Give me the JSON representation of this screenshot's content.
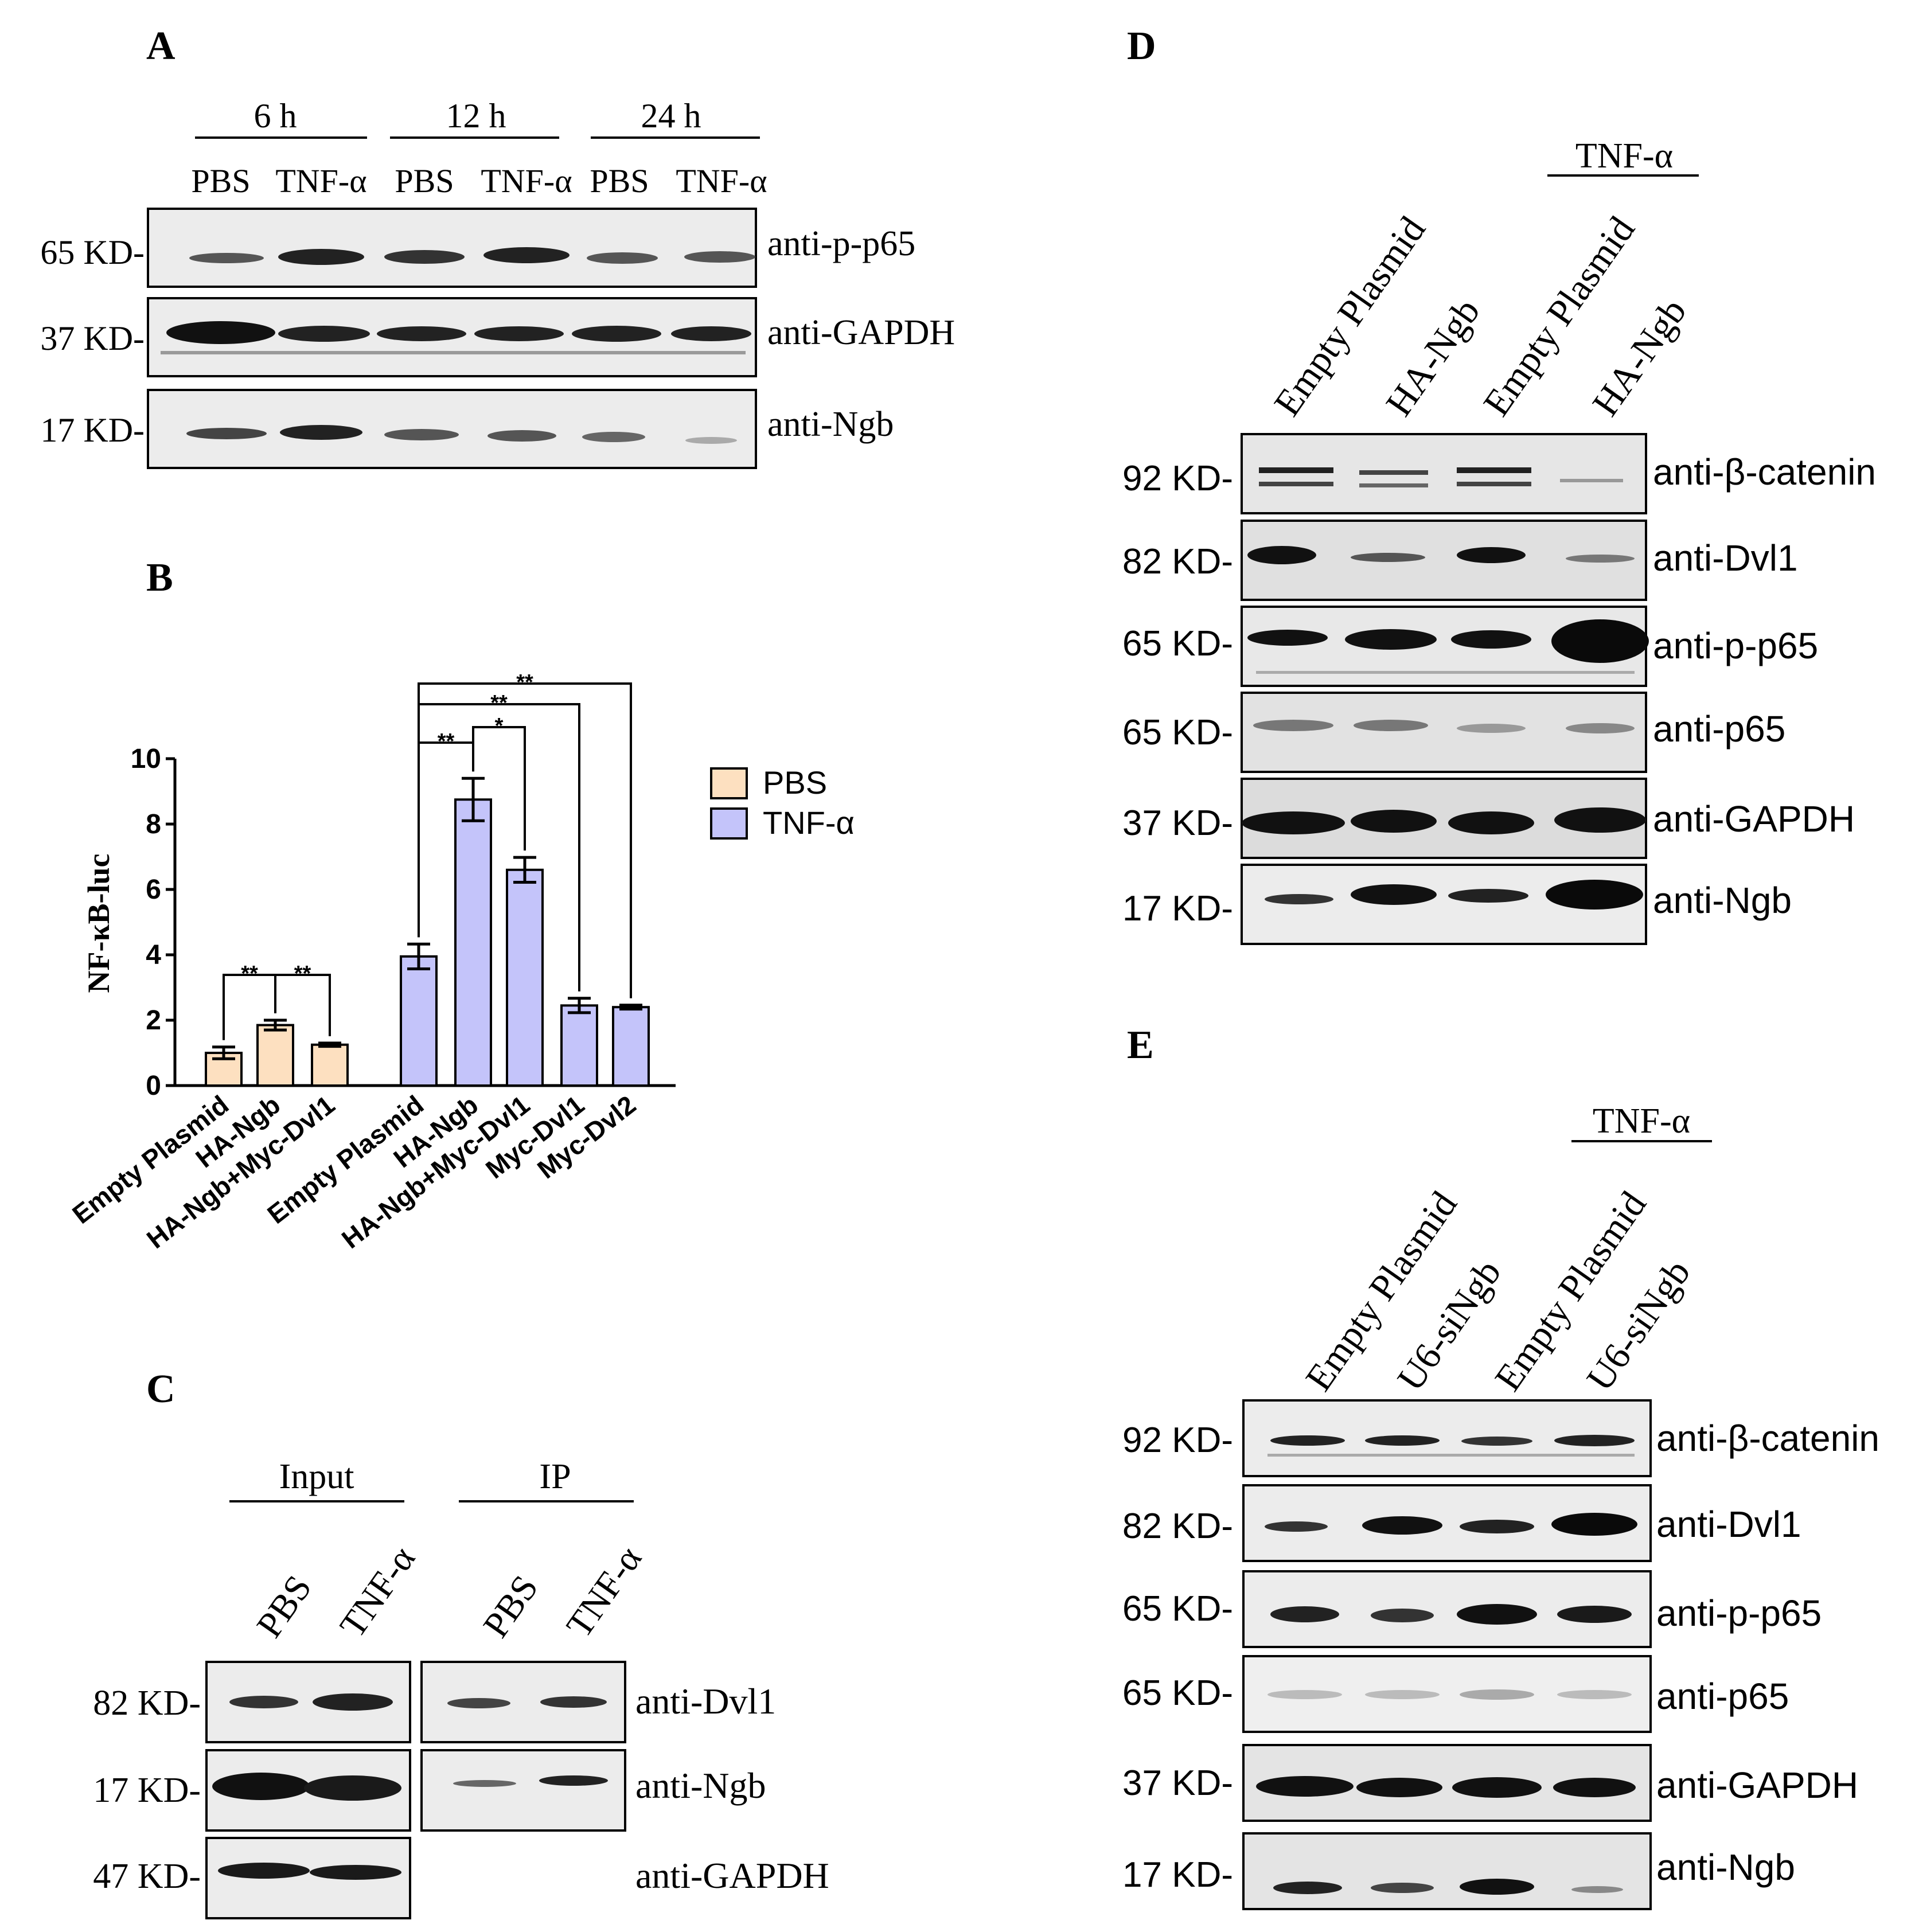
{
  "panels": {
    "A": {
      "letter": "A",
      "groups": [
        "6 h",
        "12 h",
        "24 h"
      ],
      "lanes": [
        "PBS",
        "TNF-α",
        "PBS",
        "TNF-α",
        "PBS",
        "TNF-α"
      ],
      "blots": [
        {
          "kd": "65 KD-",
          "antibody": "anti-p-p65"
        },
        {
          "kd": "37 KD-",
          "antibody": "anti-GAPDH"
        },
        {
          "kd": "17 KD-",
          "antibody": "anti-Ngb"
        }
      ]
    },
    "B": {
      "letter": "B"
    },
    "C": {
      "letter": "C",
      "groups": [
        "Input",
        "IP"
      ],
      "lanes": [
        "PBS",
        "TNF-α",
        "PBS",
        "TNF-α"
      ],
      "blots": [
        {
          "kd": "82 KD-",
          "antibody": "anti-Dvl1"
        },
        {
          "kd": "17 KD-",
          "antibody": "anti-Ngb"
        },
        {
          "kd": "47 KD-",
          "antibody": "anti-GAPDH"
        }
      ]
    },
    "D": {
      "letter": "D",
      "treatment": "TNF-α",
      "lanes": [
        "Empty Plasmid",
        "HA-Ngb",
        "Empty Plasmid",
        "HA-Ngb"
      ],
      "blots": [
        {
          "kd": "92 KD-",
          "antibody": "anti-β-catenin"
        },
        {
          "kd": "82 KD-",
          "antibody": "anti-Dvl1"
        },
        {
          "kd": "65 KD-",
          "antibody": "anti-p-p65"
        },
        {
          "kd": "65 KD-",
          "antibody": "anti-p65"
        },
        {
          "kd": "37 KD-",
          "antibody": "anti-GAPDH"
        },
        {
          "kd": "17 KD-",
          "antibody": "anti-Ngb"
        }
      ]
    },
    "E": {
      "letter": "E",
      "treatment": "TNF-α",
      "lanes": [
        "Empty Plasmid",
        "U6-siNgb",
        "Empty Plasmid",
        "U6-siNgb"
      ],
      "blots": [
        {
          "kd": "92 KD-",
          "antibody": "anti-β-catenin"
        },
        {
          "kd": "82 KD-",
          "antibody": "anti-Dvl1"
        },
        {
          "kd": "65 KD-",
          "antibody": "anti-p-p65"
        },
        {
          "kd": "65 KD-",
          "antibody": "anti-p65"
        },
        {
          "kd": "37 KD-",
          "antibody": "anti-GAPDH"
        },
        {
          "kd": "17 KD-",
          "antibody": "anti-Ngb"
        }
      ]
    }
  },
  "chart_data": {
    "type": "bar",
    "ylabel": "NF-κB-luc",
    "ylim": [
      0,
      10
    ],
    "yticks": [
      0,
      2,
      4,
      6,
      8,
      10
    ],
    "legend": [
      "PBS",
      "TNF-α"
    ],
    "legend_position": "right",
    "colors": {
      "PBS": "#fde0c0",
      "TNF-α": "#c4c4fa"
    },
    "series": [
      {
        "name": "PBS",
        "categories": [
          "Empty Plasmid",
          "HA-Ngb",
          "HA-Ngb+Myc-Dvl1"
        ],
        "values": [
          1.0,
          1.85,
          1.25
        ],
        "errors": [
          0.18,
          0.15,
          0.05
        ]
      },
      {
        "name": "TNF-α",
        "categories": [
          "Empty Plasmid",
          "HA-Ngb",
          "HA-Ngb+Myc-Dvl1",
          "Myc-Dvl1",
          "Myc-Dvl2"
        ],
        "values": [
          3.95,
          8.75,
          6.6,
          2.45,
          2.4
        ],
        "errors": [
          0.38,
          0.65,
          0.38,
          0.22,
          0.06
        ]
      }
    ],
    "significance": [
      {
        "series": "PBS",
        "from": 0,
        "to": 1,
        "label": "**"
      },
      {
        "series": "PBS",
        "from": 1,
        "to": 2,
        "label": "**"
      },
      {
        "series": "TNF-α",
        "from": 0,
        "to": 1,
        "label": "**"
      },
      {
        "series": "TNF-α",
        "from": 1,
        "to": 2,
        "label": "*"
      },
      {
        "series": "TNF-α",
        "from": 0,
        "to": 3,
        "label": "**"
      },
      {
        "series": "TNF-α",
        "from": 0,
        "to": 4,
        "label": "**"
      }
    ]
  }
}
